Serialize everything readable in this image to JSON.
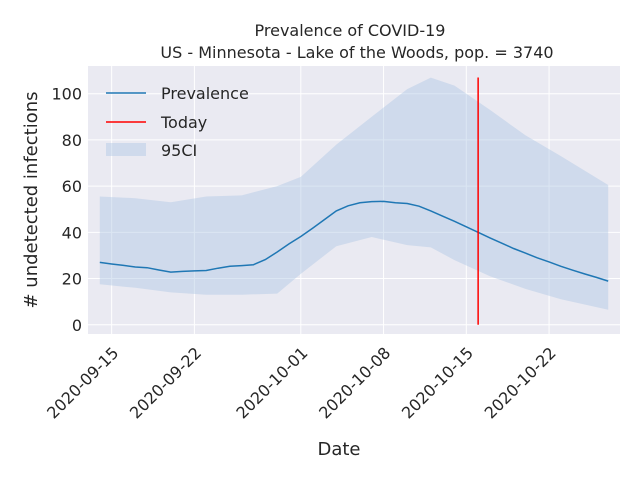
{
  "chart_data": {
    "type": "line",
    "title": "Prevalence of COVID-19",
    "subtitle": "US - Minnesota - Lake of the Woods, pop. = 3740",
    "xlabel": "Date",
    "ylabel": "# undetected infections",
    "x_ticks": [
      "2020-09-15",
      "2020-09-22",
      "2020-10-01",
      "2020-10-08",
      "2020-10-15",
      "2020-10-22"
    ],
    "y_ticks": [
      0,
      20,
      40,
      60,
      80,
      100
    ],
    "xlim": [
      "2020-09-13",
      "2020-10-28"
    ],
    "ylim": [
      -4,
      112
    ],
    "grid": true,
    "legend_position": "top-left",
    "colors": {
      "background": "#eaeaf2",
      "grid": "#ffffff",
      "prevalence": "#1f77b4",
      "today": "#ff0000",
      "band": "#b0c8e4"
    },
    "series": [
      {
        "name": "Prevalence",
        "x": [
          "2020-09-14",
          "2020-09-15",
          "2020-09-16",
          "2020-09-17",
          "2020-09-18",
          "2020-09-19",
          "2020-09-20",
          "2020-09-21",
          "2020-09-22",
          "2020-09-23",
          "2020-09-24",
          "2020-09-25",
          "2020-09-26",
          "2020-09-27",
          "2020-09-28",
          "2020-09-29",
          "2020-09-30",
          "2020-10-01",
          "2020-10-02",
          "2020-10-03",
          "2020-10-04",
          "2020-10-05",
          "2020-10-06",
          "2020-10-07",
          "2020-10-08",
          "2020-10-09",
          "2020-10-10",
          "2020-10-11",
          "2020-10-12",
          "2020-10-13",
          "2020-10-14",
          "2020-10-15",
          "2020-10-16",
          "2020-10-17",
          "2020-10-18",
          "2020-10-19",
          "2020-10-20",
          "2020-10-21",
          "2020-10-22",
          "2020-10-23",
          "2020-10-24",
          "2020-10-25",
          "2020-10-26",
          "2020-10-27"
        ],
        "values": [
          27.0,
          26.3,
          25.7,
          25.0,
          24.7,
          23.7,
          22.8,
          23.1,
          23.3,
          23.5,
          24.5,
          25.3,
          25.6,
          26.0,
          28.2,
          31.5,
          35.0,
          38.2,
          41.8,
          45.5,
          49.3,
          51.5,
          52.8,
          53.3,
          53.4,
          52.8,
          52.5,
          51.3,
          49.3,
          47.0,
          44.8,
          42.4,
          40.0,
          37.6,
          35.3,
          33.0,
          31.0,
          29.0,
          27.2,
          25.3,
          23.6,
          22.0,
          20.5,
          18.9
        ]
      },
      {
        "name": "95CI",
        "x": [
          "2020-09-14",
          "2020-09-17",
          "2020-09-20",
          "2020-09-23",
          "2020-09-26",
          "2020-09-29",
          "2020-10-01",
          "2020-10-04",
          "2020-10-07",
          "2020-10-10",
          "2020-10-12",
          "2020-10-14",
          "2020-10-17",
          "2020-10-20",
          "2020-10-23",
          "2020-10-27"
        ],
        "lower": [
          17.5,
          16.0,
          14.0,
          13.0,
          13.0,
          13.5,
          22.0,
          34.0,
          38.0,
          34.5,
          33.5,
          28.0,
          21.0,
          15.5,
          11.0,
          6.5
        ],
        "upper": [
          55.5,
          54.8,
          53.0,
          55.5,
          56.0,
          60.0,
          64.0,
          78.0,
          90.0,
          102.0,
          107.0,
          103.5,
          93.0,
          82.0,
          73.0,
          60.5
        ]
      }
    ],
    "today": {
      "name": "Today",
      "x": "2020-10-16",
      "y_range": [
        0,
        107
      ]
    },
    "legend": [
      "Prevalence",
      "Today",
      "95CI"
    ]
  }
}
